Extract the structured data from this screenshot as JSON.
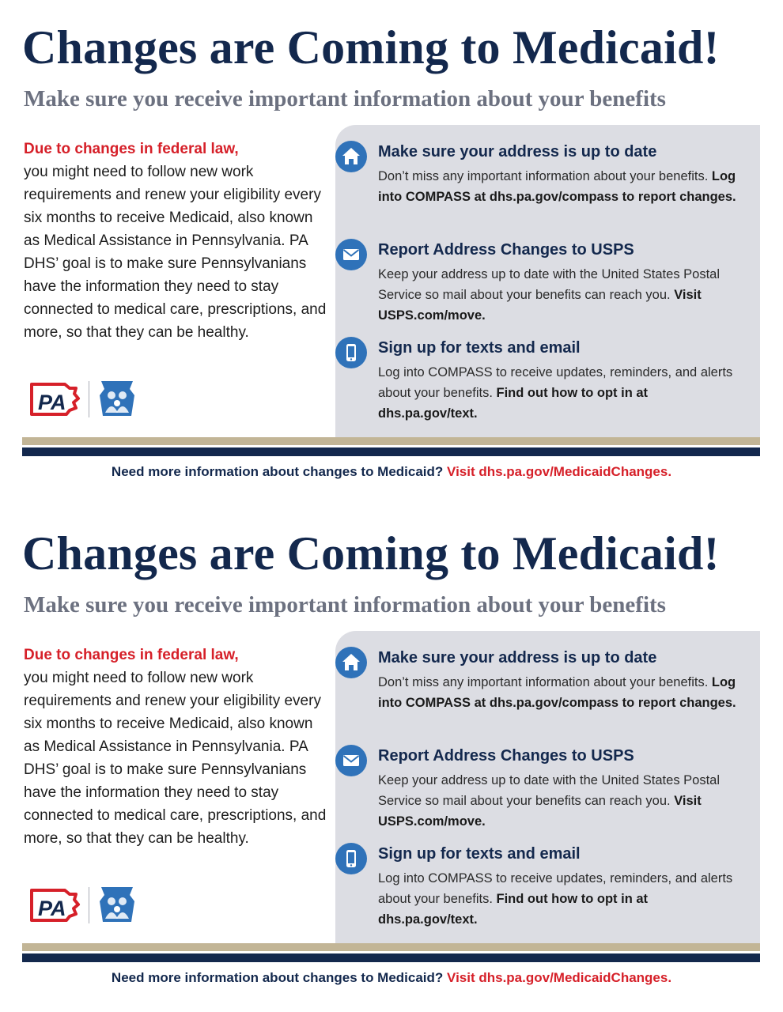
{
  "flyer": {
    "title": "Changes are Coming to Medicaid!",
    "subtitle": "Make sure you receive important information about your benefits",
    "intro": {
      "lead": "Due to changes in federal law,",
      "body": "you might need to follow new work requirements and renew your eligibility every six months to receive Medicaid, also known as Medical Assistance in Pennsylvania. PA DHS’ goal is to make sure Pennsylvanians have the information they need to stay connected to medical care, prescriptions, and more, so that they can be healthy."
    },
    "logos": {
      "pa_logo_text": "PA"
    },
    "items": [
      {
        "icon": "home-icon",
        "heading": "Make sure your address is up to date",
        "text": "Don’t miss any important information about your benefits. ",
        "bold": "Log into COMPASS at dhs.pa.gov/compass to report changes."
      },
      {
        "icon": "envelope-icon",
        "heading": "Report Address Changes to USPS",
        "text": "Keep your address up to date with the United States Postal Service so mail about your benefits can reach you. ",
        "bold": "Visit USPS.com/move."
      },
      {
        "icon": "mobile-phone-icon",
        "heading": "Sign up for texts and email",
        "text": "Log into COMPASS to receive updates, reminders, and alerts about your benefits. ",
        "bold": "Find out how to opt in at dhs.pa.gov/text."
      }
    ],
    "footer": {
      "question": "Need more information about changes to Medicaid? ",
      "visit": "Visit dhs.pa.gov/MedicaidChanges."
    }
  },
  "colors": {
    "navy": "#13284d",
    "red": "#d62029",
    "gray_subtitle": "#6c7180",
    "panel_gray": "#dcdde3",
    "icon_blue": "#2f72b9",
    "tan": "#c2b596"
  }
}
